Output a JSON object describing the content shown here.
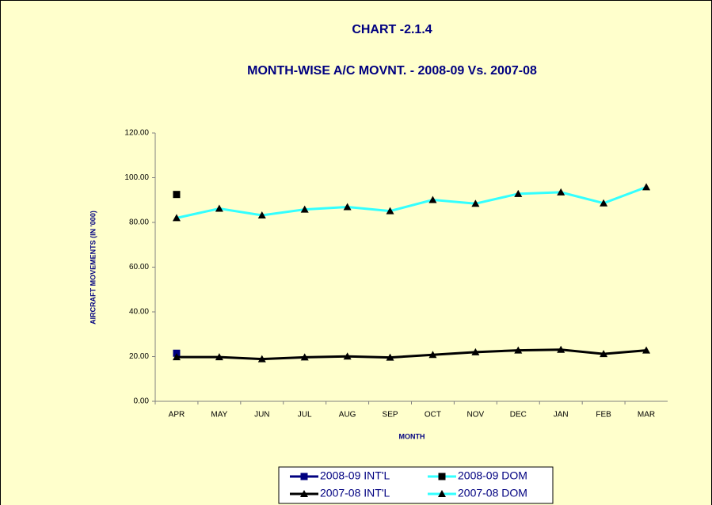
{
  "chart_data": {
    "type": "line",
    "title": "CHART -2.1.4",
    "subtitle": "MONTH-WISE A/C MOVNT. - 2008-09 Vs. 2007-08",
    "x_label": "MONTH",
    "y_label": "AIRCRAFT MOVEMENTS (IN '000)",
    "categories": [
      "APR",
      "MAY",
      "JUN",
      "JUL",
      "AUG",
      "SEP",
      "OCT",
      "NOV",
      "DEC",
      "JAN",
      "FEB",
      "MAR"
    ],
    "series": [
      {
        "name": "2008-09 INT'L",
        "color": "#000080",
        "marker": "square",
        "marker_color": "#000080",
        "values": [
          21.5,
          null,
          null,
          null,
          null,
          null,
          null,
          null,
          null,
          null,
          null,
          null
        ]
      },
      {
        "name": "2008-09 DOM",
        "color": "#33ffff",
        "marker": "square",
        "marker_color": "#000000",
        "values": [
          92.5,
          null,
          null,
          null,
          null,
          null,
          null,
          null,
          null,
          null,
          null,
          null
        ]
      },
      {
        "name": "2007-08 INT'L",
        "color": "#000000",
        "marker": "triangle",
        "marker_color": "#000000",
        "values": [
          19.8,
          19.8,
          18.9,
          19.7,
          20.1,
          19.6,
          20.8,
          22.0,
          22.8,
          23.1,
          21.2,
          22.8
        ]
      },
      {
        "name": "2007-08 DOM",
        "color": "#33ffff",
        "marker": "triangle",
        "marker_color": "#000000",
        "values": [
          82.0,
          86.2,
          83.2,
          85.8,
          86.9,
          85.1,
          90.1,
          88.4,
          92.8,
          93.5,
          88.6,
          95.8
        ]
      }
    ],
    "ylim": [
      0,
      120
    ],
    "yticks": [
      {
        "value": 0,
        "label": "0.00"
      },
      {
        "value": 20,
        "label": "20.00"
      },
      {
        "value": 40,
        "label": "40.00"
      },
      {
        "value": 60,
        "label": "60.00"
      },
      {
        "value": 80,
        "label": "80.00"
      },
      {
        "value": 100,
        "label": "100.00"
      },
      {
        "value": 120,
        "label": "120.00"
      }
    ],
    "grid": false,
    "legend": "bottom"
  }
}
